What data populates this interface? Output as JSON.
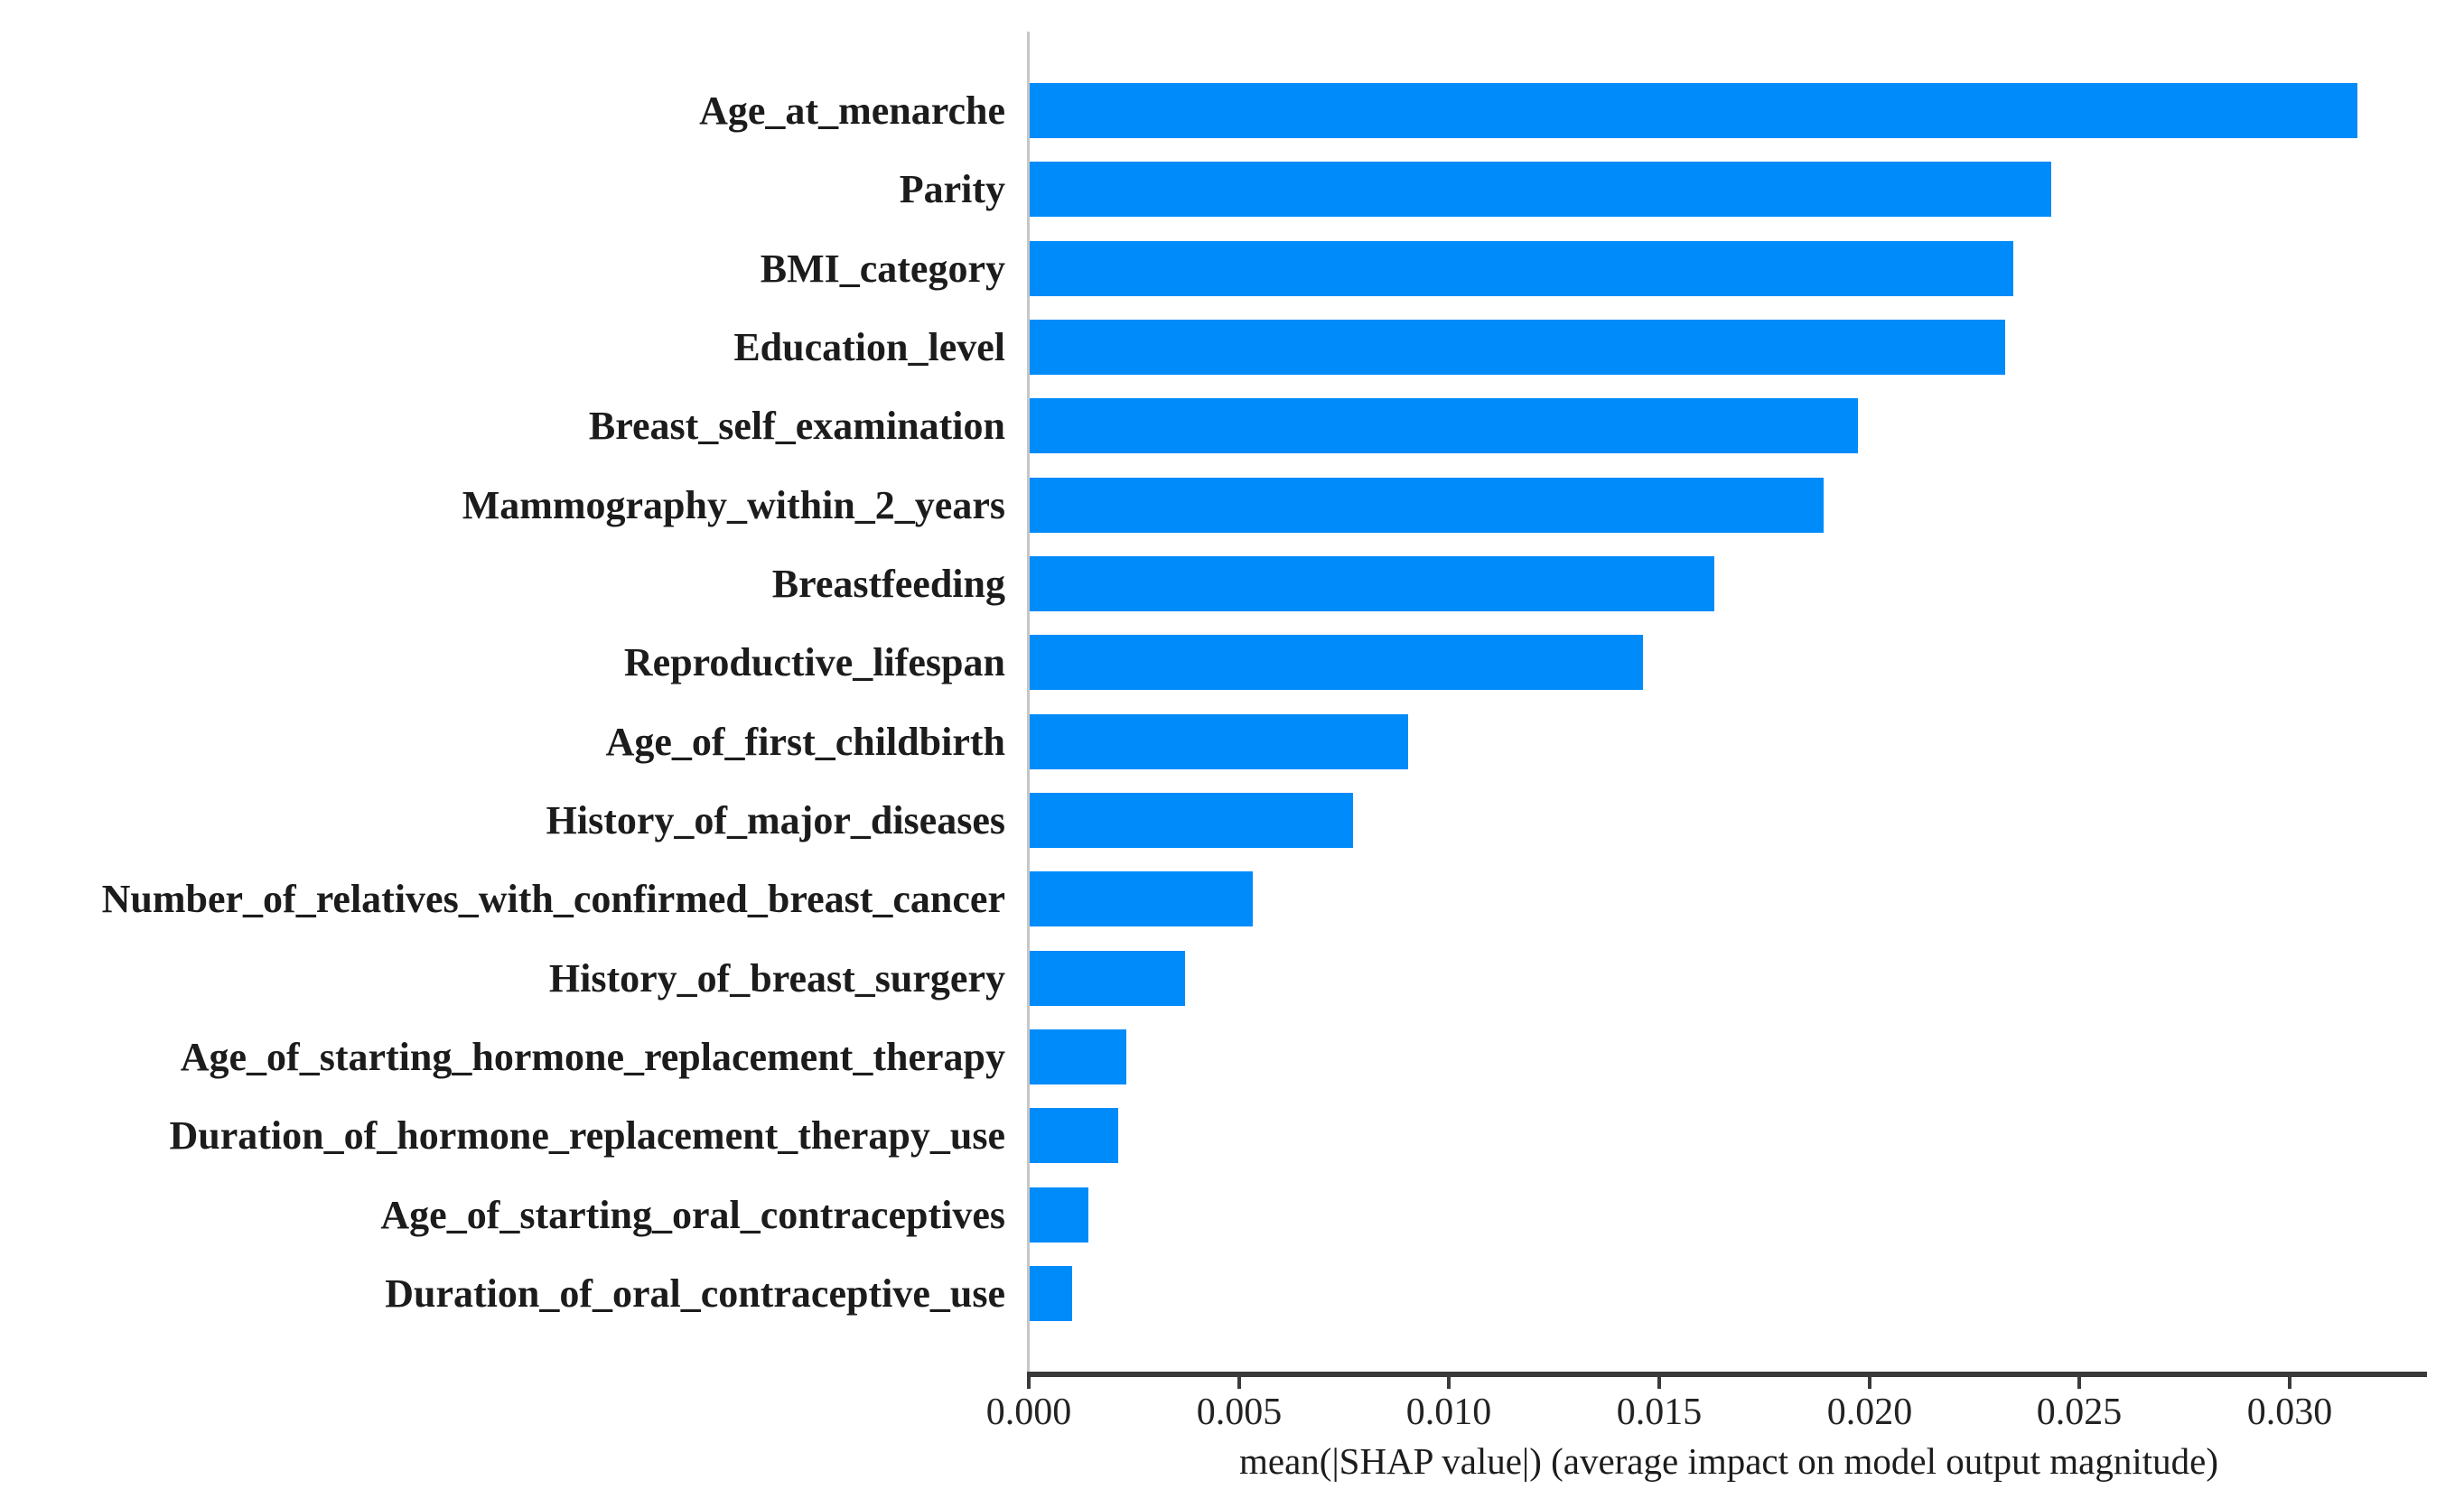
{
  "chart_data": {
    "type": "bar",
    "orientation": "horizontal",
    "title": "",
    "xlabel": "mean(|SHAP value|) (average impact on model output magnitude)",
    "ylabel": "",
    "categories": [
      "Age_at_menarche",
      "Parity",
      "BMI_category",
      "Education_level",
      "Breast_self_examination",
      "Mammography_within_2_years",
      "Breastfeeding",
      "Reproductive_lifespan",
      "Age_of_first_childbirth",
      "History_of_major_diseases",
      "Number_of_relatives_with_confirmed_breast_cancer",
      "History_of_breast_surgery",
      "Age_of_starting_hormone_replacement_therapy",
      "Duration_of_hormone_replacement_therapy_use",
      "Age_of_starting_oral_contraceptives",
      "Duration_of_oral_contraceptive_use"
    ],
    "values": [
      0.0316,
      0.0243,
      0.0234,
      0.0232,
      0.0197,
      0.0189,
      0.0163,
      0.0146,
      0.009,
      0.0077,
      0.0053,
      0.0037,
      0.0023,
      0.0021,
      0.0014,
      0.001
    ],
    "xticks": [
      0.0,
      0.005,
      0.01,
      0.015,
      0.02,
      0.025,
      0.03
    ],
    "xtick_labels": [
      "0.000",
      "0.005",
      "0.010",
      "0.015",
      "0.020",
      "0.025",
      "0.030"
    ],
    "xlim": [
      0,
      0.0333
    ],
    "grid": false,
    "legend": null,
    "bar_color": "#008bfa",
    "axis_color": "#3a3a3a",
    "spine_color": "#c6c6c6",
    "text_color": "#1c1c1c"
  }
}
